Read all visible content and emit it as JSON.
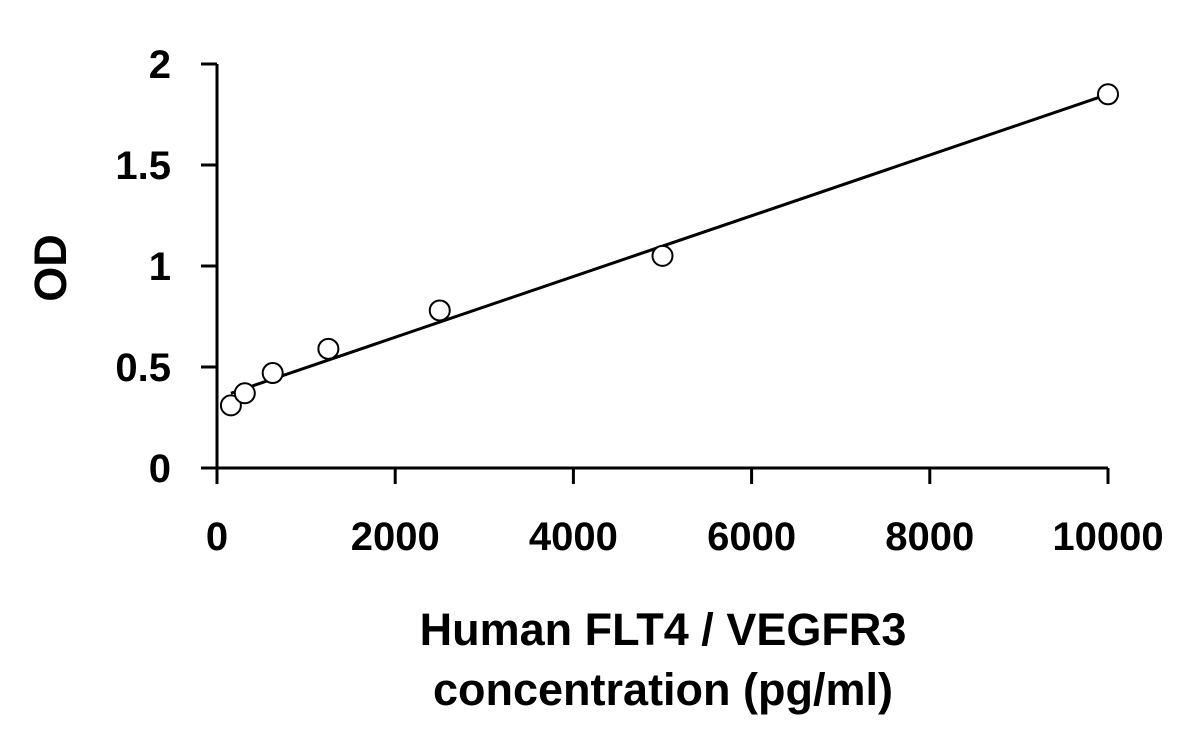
{
  "chart_data": {
    "type": "scatter",
    "title": "",
    "xlabel_lines": [
      "Human FLT4 / VEGFR3",
      "concentration (pg/ml)"
    ],
    "ylabel": "OD",
    "xlim": [
      0,
      10000
    ],
    "ylim": [
      0,
      2
    ],
    "x_ticks": [
      0,
      2000,
      4000,
      6000,
      8000,
      10000
    ],
    "y_ticks": [
      0,
      0.5,
      1,
      1.5,
      2
    ],
    "x_tick_labels": [
      "0",
      "2000",
      "4000",
      "6000",
      "8000",
      "10000"
    ],
    "y_tick_labels": [
      "0",
      "0.5",
      "1",
      "1.5",
      "2"
    ],
    "grid": false,
    "series": [
      {
        "x": [
          156,
          312,
          625,
          1250,
          2500,
          5000,
          10000
        ],
        "y": [
          0.31,
          0.37,
          0.47,
          0.59,
          0.78,
          1.05,
          1.85
        ]
      }
    ],
    "fit_line": {
      "x": [
        156,
        10000
      ],
      "y": [
        0.37,
        1.85
      ]
    },
    "colors": {
      "marker_fill": "#ffffff",
      "stroke": "#000000"
    }
  }
}
